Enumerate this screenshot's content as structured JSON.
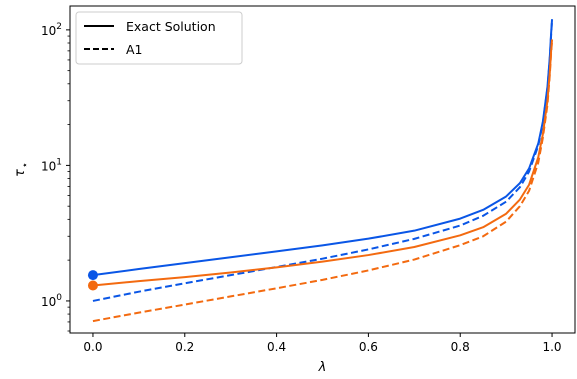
{
  "chart_data": {
    "type": "line",
    "title": "",
    "xlabel": "λ",
    "ylabel": "τ",
    "ylabel_subscript": "⋆",
    "xlim": [
      -0.05,
      1.05
    ],
    "ylim": [
      0.58,
      150
    ],
    "yscale": "log",
    "grid": false,
    "legend_position": "top-left",
    "xticks": [
      0.0,
      0.2,
      0.4,
      0.6,
      0.8,
      1.0
    ],
    "xtick_labels": [
      "0.0",
      "0.2",
      "0.4",
      "0.6",
      "0.8",
      "1.0"
    ],
    "yticks": [
      1,
      10,
      100
    ],
    "ytick_labels": [
      {
        "base": "10",
        "exp": "0"
      },
      {
        "base": "10",
        "exp": "1"
      },
      {
        "base": "10",
        "exp": "2"
      }
    ],
    "legend": [
      {
        "label": "Exact Solution",
        "linestyle": "solid"
      },
      {
        "label": "A1",
        "linestyle": "dashed"
      }
    ],
    "series": [
      {
        "color": "#0a56e6",
        "linestyle": "solid",
        "marker_at_start": true,
        "x": [
          0.0,
          0.1,
          0.2,
          0.3,
          0.4,
          0.5,
          0.6,
          0.7,
          0.8,
          0.85,
          0.9,
          0.93,
          0.95,
          0.97,
          0.98,
          0.99,
          0.995,
          0.998,
          1.0
        ],
        "y": [
          1.55,
          1.72,
          1.9,
          2.1,
          2.32,
          2.57,
          2.88,
          3.3,
          4.05,
          4.7,
          5.9,
          7.4,
          9.5,
          14.5,
          21,
          38,
          62,
          95,
          120
        ]
      },
      {
        "color": "#0a56e6",
        "linestyle": "dashed",
        "marker_at_start": false,
        "x": [
          0.0,
          0.1,
          0.2,
          0.3,
          0.4,
          0.5,
          0.6,
          0.7,
          0.8,
          0.85,
          0.9,
          0.93,
          0.95,
          0.97,
          0.98,
          0.99,
          0.995,
          0.998,
          1.0
        ],
        "y": [
          1.0,
          1.17,
          1.35,
          1.55,
          1.78,
          2.05,
          2.4,
          2.87,
          3.6,
          4.25,
          5.4,
          6.9,
          9.0,
          14.0,
          20.5,
          37,
          60,
          92,
          118
        ]
      },
      {
        "color": "#f36a10",
        "linestyle": "solid",
        "marker_at_start": true,
        "x": [
          0.0,
          0.1,
          0.2,
          0.3,
          0.4,
          0.5,
          0.6,
          0.7,
          0.8,
          0.85,
          0.9,
          0.93,
          0.95,
          0.97,
          0.98,
          0.99,
          0.995,
          0.998,
          1.0
        ],
        "y": [
          1.3,
          1.4,
          1.5,
          1.62,
          1.77,
          1.95,
          2.18,
          2.5,
          3.05,
          3.5,
          4.4,
          5.6,
          7.2,
          11.5,
          17,
          30,
          48,
          70,
          85
        ]
      },
      {
        "color": "#f36a10",
        "linestyle": "dashed",
        "marker_at_start": false,
        "x": [
          0.0,
          0.1,
          0.2,
          0.3,
          0.4,
          0.5,
          0.6,
          0.7,
          0.8,
          0.85,
          0.9,
          0.93,
          0.95,
          0.97,
          0.98,
          0.99,
          0.995,
          0.998,
          1.0
        ],
        "y": [
          0.71,
          0.82,
          0.94,
          1.08,
          1.24,
          1.43,
          1.68,
          2.02,
          2.58,
          3.0,
          3.85,
          5.0,
          6.5,
          10.5,
          16,
          28,
          46,
          68,
          83
        ]
      }
    ]
  }
}
